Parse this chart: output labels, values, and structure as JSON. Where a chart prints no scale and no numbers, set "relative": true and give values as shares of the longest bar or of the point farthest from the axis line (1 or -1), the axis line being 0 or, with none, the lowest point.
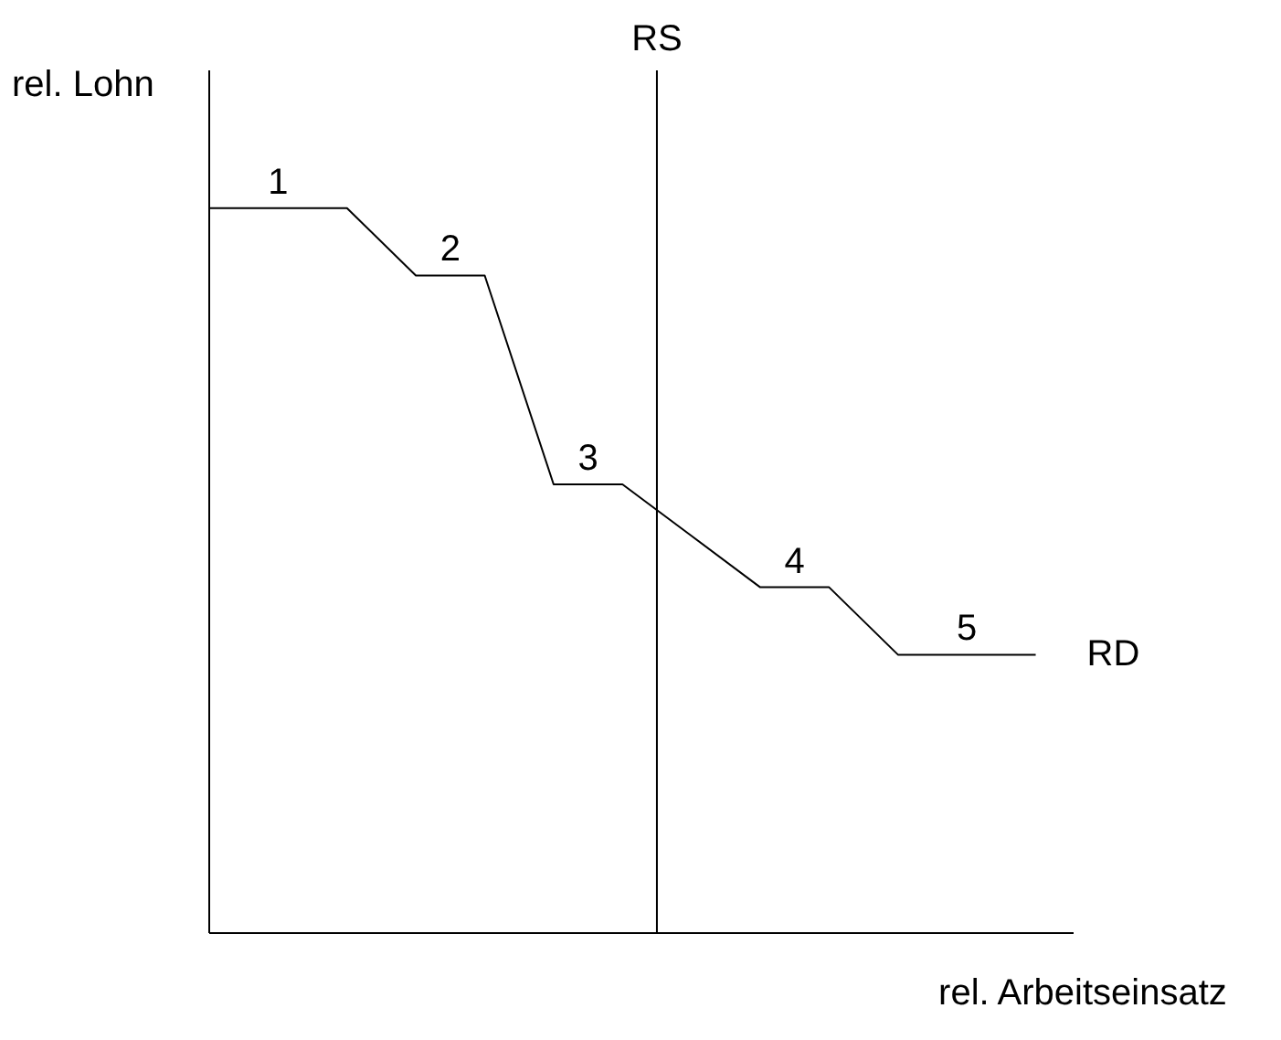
{
  "chart_data": {
    "type": "line",
    "relative": true,
    "xlabel": "rel. Arbeitseinsatz",
    "ylabel": "rel. Lohn",
    "categories": [
      null,
      null,
      null,
      null,
      null,
      null,
      null,
      null,
      null,
      null,
      null,
      null,
      null
    ],
    "series": [
      {
        "name": "RD",
        "color": "#000000",
        "values": [
          1,
          1,
          1,
          0.907,
          0.907,
          0.619,
          0.619,
          0.548,
          0.477,
          0.477,
          0.384,
          0.384,
          0.384
        ]
      }
    ],
    "grid": false,
    "legend": false,
    "marker": "none",
    "line_style": "solid",
    "ref_lines": [
      {
        "axis": "x",
        "label": "RS",
        "color": "#000000"
      }
    ],
    "annotations": [
      "1",
      "2",
      "3",
      "4",
      "5"
    ]
  }
}
